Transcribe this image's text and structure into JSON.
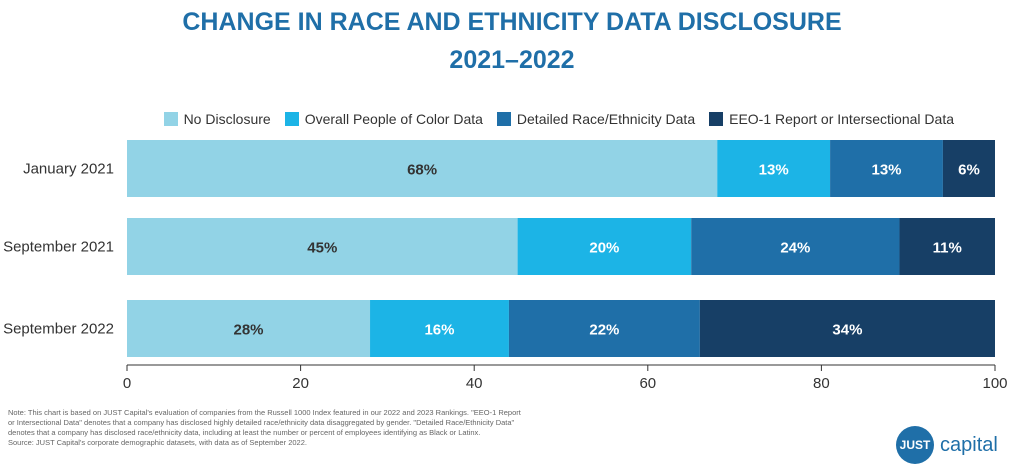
{
  "title_line1": "CHANGE IN RACE AND ETHNICITY DATA DISCLOSURE",
  "title_line2": "2021–2022",
  "colors": {
    "title": "#1f6fa8",
    "no_disclosure": "#92d3e6",
    "overall_poc": "#1cb4e6",
    "detailed": "#1f6fa8",
    "eeo1": "#173f66"
  },
  "chart_data": {
    "type": "bar",
    "orientation": "horizontal",
    "stacked": true,
    "categories": [
      "January 2021",
      "September 2021",
      "September 2022"
    ],
    "series": [
      {
        "name": "No Disclosure",
        "values": [
          68,
          45,
          28
        ],
        "labels": [
          "68%",
          "45%",
          "28%"
        ]
      },
      {
        "name": "Overall People of Color Data",
        "values": [
          13,
          20,
          16
        ],
        "labels": [
          "13%",
          "20%",
          "16%"
        ]
      },
      {
        "name": "Detailed Race/Ethnicity Data",
        "values": [
          13,
          24,
          22
        ],
        "labels": [
          "13%",
          "24%",
          "22%"
        ]
      },
      {
        "name": "EEO-1 Report or Intersectional Data",
        "values": [
          6,
          11,
          34
        ],
        "labels": [
          "6%",
          "11%",
          "34%"
        ]
      }
    ],
    "xlim": [
      0,
      100
    ],
    "xticks": [
      "0",
      "20",
      "40",
      "60",
      "80",
      "100"
    ],
    "legend_position": "top-right",
    "grid": false
  },
  "note_lines": [
    "Note: This chart is based on JUST Capital's evaluation of companies from the Russell 1000 Index featured in our 2022 and 2023 Rankings. \"EEO-1 Report",
    "or Intersectional Data\" denotes that a company has disclosed highly detailed race/ethnicity data disaggregated by gender. \"Detailed Race/Ethnicity Data\"",
    "denotes that a company has disclosed race/ethnicity data, including at least the number or percent of employees identifying as Black or Latinx.",
    "Source: JUST Capital's corporate demographic datasets, with data as of September 2022."
  ],
  "logo": {
    "mark": "JUST",
    "text": "capital"
  }
}
